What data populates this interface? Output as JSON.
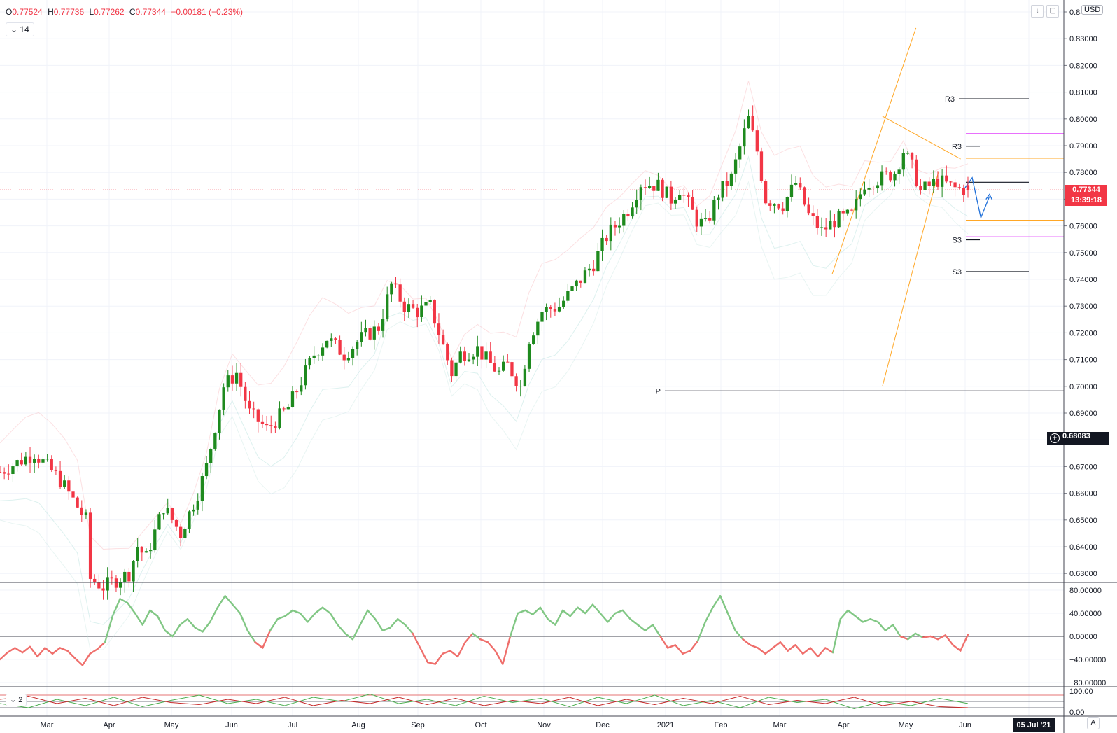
{
  "ohlc": {
    "open_key": "O",
    "open": "0.77524",
    "high_key": "H",
    "high": "0.77736",
    "low_key": "L",
    "low": "0.77262",
    "close_key": "C",
    "close": "0.77344",
    "change": "−0.00181 (−0.23%)"
  },
  "indicator_button": {
    "icon": "chevron-down-icon",
    "label": "14"
  },
  "indicator_button2": {
    "icon": "chevron-down-icon",
    "label": "2"
  },
  "currency": "USD",
  "top_icons": [
    "arrow-down-icon",
    "maximize-icon"
  ],
  "current_price": {
    "value": "0.77344",
    "countdown": "13:39:18"
  },
  "crosshair_price": "0.68083",
  "crosshair_date": "05 Jul '21",
  "auto_scale_label": "A",
  "pivot_labels": [
    "R3",
    "R3",
    "P",
    "S3",
    "S3"
  ],
  "colors": {
    "up": "#089981",
    "up_body": "#1e8a1e",
    "down": "#f23645",
    "channel": "#ffa726",
    "pivot": "#131722",
    "magenta": "#e040fb",
    "arrow": "#1e6fd9",
    "osc_pos": "#81c784",
    "osc_neg": "#ef6f6c"
  },
  "chart_data": [
    {
      "type": "candlestick",
      "symbol_quote": "USD",
      "x_ticks": [
        "Mar",
        "Apr",
        "May",
        "Jun",
        "Jul",
        "Aug",
        "Sep",
        "Oct",
        "Nov",
        "Dec",
        "2021",
        "Feb",
        "Mar",
        "Apr",
        "May",
        "Jun"
      ],
      "y_ticks": [
        "0.84000",
        "0.83000",
        "0.82000",
        "0.81000",
        "0.80000",
        "0.79000",
        "0.78000",
        "0.77000",
        "0.76000",
        "0.75000",
        "0.74000",
        "0.73000",
        "0.72000",
        "0.71000",
        "0.70000",
        "0.69000",
        "0.68000",
        "0.67000",
        "0.66000",
        "0.65000",
        "0.64000",
        "0.63000"
      ],
      "ylim": [
        0.628,
        0.842
      ],
      "last_price": 0.77344,
      "path": [
        [
          0,
          0.668
        ],
        [
          8,
          0.675
        ],
        [
          14,
          0.665
        ],
        [
          18,
          0.655
        ],
        [
          20,
          0.65
        ],
        [
          21,
          0.628
        ],
        [
          24,
          0.625
        ],
        [
          30,
          0.63
        ],
        [
          32,
          0.64
        ],
        [
          34,
          0.636
        ],
        [
          38,
          0.655
        ],
        [
          42,
          0.645
        ],
        [
          46,
          0.66
        ],
        [
          48,
          0.67
        ],
        [
          52,
          0.7
        ],
        [
          55,
          0.705
        ],
        [
          58,
          0.69
        ],
        [
          62,
          0.684
        ],
        [
          67,
          0.692
        ],
        [
          70,
          0.702
        ],
        [
          73,
          0.712
        ],
        [
          76,
          0.718
        ],
        [
          80,
          0.712
        ],
        [
          84,
          0.718
        ],
        [
          88,
          0.722
        ],
        [
          91,
          0.738
        ],
        [
          94,
          0.73
        ],
        [
          97,
          0.728
        ],
        [
          100,
          0.73
        ],
        [
          102,
          0.72
        ],
        [
          105,
          0.705
        ],
        [
          107,
          0.712
        ],
        [
          111,
          0.714
        ],
        [
          113,
          0.71
        ],
        [
          116,
          0.705
        ],
        [
          118,
          0.708
        ],
        [
          121,
          0.7
        ],
        [
          123,
          0.718
        ],
        [
          126,
          0.728
        ],
        [
          130,
          0.73
        ],
        [
          134,
          0.738
        ],
        [
          138,
          0.746
        ],
        [
          141,
          0.756
        ],
        [
          144,
          0.762
        ],
        [
          146,
          0.766
        ],
        [
          149,
          0.776
        ],
        [
          153,
          0.775
        ],
        [
          156,
          0.77
        ],
        [
          158,
          0.774
        ],
        [
          162,
          0.762
        ],
        [
          164,
          0.76
        ],
        [
          167,
          0.772
        ],
        [
          170,
          0.778
        ],
        [
          173,
          0.795
        ],
        [
          174,
          0.8
        ],
        [
          176,
          0.788
        ],
        [
          178,
          0.77
        ],
        [
          182,
          0.768
        ],
        [
          185,
          0.776
        ],
        [
          188,
          0.764
        ],
        [
          191,
          0.758
        ],
        [
          194,
          0.762
        ],
        [
          198,
          0.764
        ],
        [
          201,
          0.776
        ],
        [
          205,
          0.778
        ],
        [
          208,
          0.78
        ],
        [
          210,
          0.788
        ],
        [
          212,
          0.782
        ],
        [
          214,
          0.773
        ],
        [
          218,
          0.777
        ],
        [
          222,
          0.774
        ],
        [
          225,
          0.7734
        ]
      ],
      "projection_path": [
        [
          224,
          0.7735
        ],
        [
          226,
          0.778
        ],
        [
          228,
          0.763
        ],
        [
          230,
          0.771
        ]
      ],
      "trendlines": [
        {
          "color": "orange",
          "from": [
            0.745,
            0.742
          ],
          "to": [
            0.82,
            0.834
          ]
        },
        {
          "color": "orange",
          "from": [
            0.79,
            0.7
          ],
          "to": [
            0.84,
            0.78
          ]
        },
        {
          "color": "orange",
          "from": [
            0.79,
            0.801
          ],
          "to": [
            0.86,
            0.785
          ]
        }
      ],
      "horizontal_levels": [
        {
          "label": "R3",
          "value": 0.8075,
          "color": "black"
        },
        {
          "label": "",
          "value": 0.7945,
          "color": "magenta"
        },
        {
          "label": "R3",
          "value": 0.7898,
          "color": "black"
        },
        {
          "label": "",
          "value": 0.7853,
          "color": "orange"
        },
        {
          "label": "",
          "value": 0.7763,
          "color": "black"
        },
        {
          "label": "",
          "value": 0.7621,
          "color": "orange"
        },
        {
          "label": "",
          "value": 0.7559,
          "color": "magenta"
        },
        {
          "label": "S3",
          "value": 0.7548,
          "color": "black"
        },
        {
          "label": "S3",
          "value": 0.7429,
          "color": "black"
        },
        {
          "label": "P",
          "value": 0.6983,
          "color": "black"
        }
      ]
    },
    {
      "type": "line",
      "y_ticks": [
        "80.00000",
        "40.00000",
        "0.00000",
        "−40.00000",
        "−80.00000"
      ],
      "ylim": [
        -88,
        88
      ],
      "zero_line": 0,
      "values": [
        -40,
        -28,
        -20,
        -28,
        -18,
        -35,
        -20,
        -30,
        -20,
        -25,
        -38,
        -50,
        -30,
        -22,
        -10,
        35,
        65,
        58,
        40,
        20,
        45,
        35,
        10,
        0,
        20,
        30,
        15,
        8,
        25,
        50,
        70,
        55,
        40,
        10,
        -10,
        -20,
        10,
        30,
        35,
        45,
        40,
        25,
        40,
        50,
        40,
        20,
        5,
        -5,
        20,
        45,
        30,
        10,
        15,
        30,
        20,
        5,
        -20,
        -45,
        -48,
        -30,
        -25,
        -35,
        -10,
        5,
        -5,
        -10,
        -25,
        -48,
        0,
        40,
        45,
        38,
        50,
        30,
        20,
        45,
        35,
        50,
        40,
        55,
        40,
        25,
        40,
        45,
        30,
        20,
        10,
        20,
        0,
        -20,
        -15,
        -30,
        -25,
        -8,
        25,
        50,
        70,
        40,
        10,
        -5,
        -15,
        -20,
        -30,
        -20,
        -10,
        -25,
        -15,
        -30,
        -20,
        -35,
        -20,
        -28,
        30,
        45,
        35,
        25,
        30,
        25,
        10,
        20,
        0,
        -5,
        5,
        -2,
        0,
        -5,
        2,
        -15,
        -25,
        3
      ],
      "series_colors": {
        "positive": "green",
        "negative": "red"
      }
    },
    {
      "type": "line",
      "y_ticks": [
        "100.00",
        "0.00"
      ],
      "ylim": [
        -5,
        110
      ],
      "reference_lines": [
        80,
        50,
        20
      ],
      "series": [
        {
          "color": "green",
          "values": [
            40,
            20,
            60,
            30,
            70,
            25,
            55,
            80,
            40,
            60,
            30,
            70,
            50,
            85,
            40,
            60,
            30,
            75,
            45,
            65,
            25,
            70,
            40,
            80,
            30,
            55,
            20,
            70,
            45,
            60,
            15,
            50,
            30,
            65,
            40
          ]
        },
        {
          "color": "red",
          "values": [
            60,
            75,
            40,
            65,
            30,
            70,
            45,
            35,
            60,
            40,
            70,
            30,
            55,
            40,
            70,
            35,
            65,
            30,
            55,
            40,
            70,
            30,
            60,
            35,
            65,
            40,
            75,
            35,
            55,
            40,
            70,
            30,
            50,
            25,
            20
          ]
        }
      ]
    }
  ]
}
